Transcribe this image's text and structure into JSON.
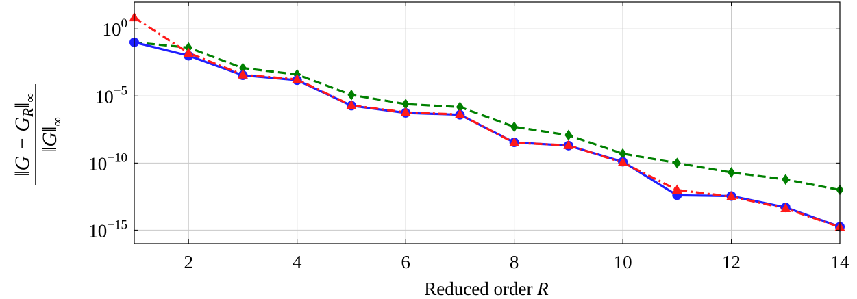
{
  "chart_data": {
    "type": "line",
    "xlabel": "Reduced order R",
    "ylabel": "‖G − G_R‖∞ / ‖G‖∞",
    "ylabel_numerator": "‖G − G",
    "ylabel_numerator_sub": "R",
    "ylabel_numerator_end": "‖",
    "ylabel_numerator_inf": "∞",
    "ylabel_denominator": "‖G‖",
    "ylabel_denominator_inf": "∞",
    "y_scale": "log",
    "xlim": [
      1,
      14
    ],
    "ylim": [
      1e-16,
      100.0
    ],
    "x_ticks": [
      2,
      4,
      6,
      8,
      10,
      12,
      14
    ],
    "y_ticks": [
      {
        "value": 1,
        "base": "10",
        "exponent": "0"
      },
      {
        "value": 1e-05,
        "base": "10",
        "exponent": "−5"
      },
      {
        "value": 1e-10,
        "base": "10",
        "exponent": "−10"
      },
      {
        "value": 1e-15,
        "base": "10",
        "exponent": "−15"
      }
    ],
    "grid": true,
    "legend": "none",
    "x": [
      1,
      2,
      3,
      4,
      5,
      6,
      7,
      8,
      9,
      10,
      11,
      12,
      13,
      14
    ],
    "series": [
      {
        "color": "#1f1fff",
        "line_style": "solid",
        "marker": "circle",
        "values": [
          0.1,
          0.01,
          0.00035,
          0.00015,
          1.9e-06,
          5.5e-07,
          4e-07,
          3.5e-09,
          2e-09,
          1.25e-10,
          4e-13,
          3.5e-13,
          5e-14,
          1.8e-15
        ]
      },
      {
        "color": "#ff1a1a",
        "line_style": "dash-dot",
        "marker": "triangle",
        "values": [
          7,
          0.016,
          0.00038,
          0.00017,
          2e-06,
          6e-07,
          4.2e-07,
          3.3e-09,
          2.1e-09,
          1.1e-10,
          1e-12,
          3.2e-13,
          4.2e-14,
          1.7e-15
        ]
      },
      {
        "color": "#008000",
        "line_style": "dashed",
        "marker": "diamond",
        "values": [
          0.1,
          0.04,
          0.0012,
          0.0004,
          1.2e-05,
          2.5e-06,
          1.5e-06,
          5e-08,
          1.2e-08,
          5e-10,
          1e-10,
          2e-11,
          6e-12,
          1e-12
        ]
      }
    ]
  }
}
